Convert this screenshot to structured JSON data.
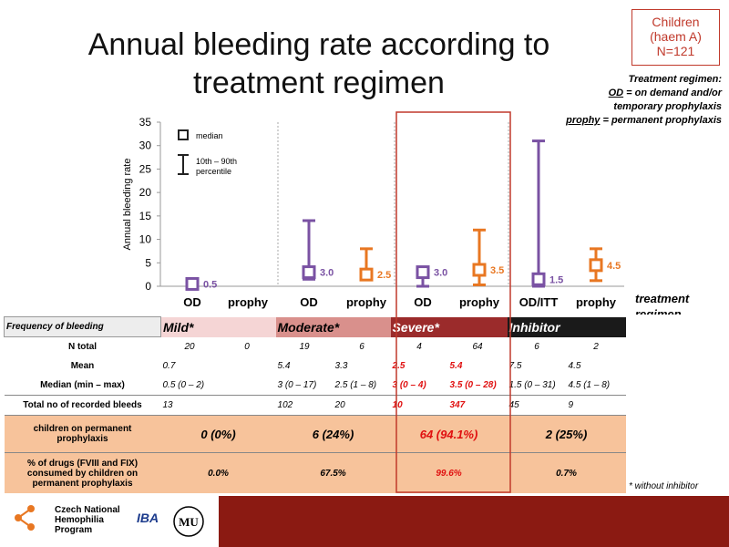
{
  "title": "Annual bleeding rate according to treatment regimen",
  "badge": {
    "line1": "Children",
    "line2": "(haem A)",
    "line3": "N=121"
  },
  "treatment_note": {
    "heading": "Treatment regimen:",
    "od_term": "OD",
    "od_def": " = on demand and/or",
    "od_def2": "temporary prophylaxis",
    "prophy_term": "prophy",
    "prophy_def": " = permanent prophylaxis"
  },
  "chart_data": {
    "type": "boxplot",
    "ylabel": "Annual bleeding rate",
    "ylim": [
      0,
      35
    ],
    "yticks": [
      0,
      5,
      10,
      15,
      20,
      25,
      30,
      35
    ],
    "xlabel": "treatment regimen",
    "legend": {
      "median": "median",
      "range_line1": "10th – 90th",
      "range_line2": "percentile"
    },
    "series": [
      {
        "group": "Mild*",
        "regimen": "OD",
        "median": 0.5,
        "low": 0,
        "high": 1.5,
        "label": "0.5",
        "color": "#7a52a3"
      },
      {
        "group": "Mild*",
        "regimen": "prophy",
        "median": null,
        "low": null,
        "high": null,
        "label": "",
        "color": "#e87722"
      },
      {
        "group": "Moderate*",
        "regimen": "OD",
        "median": 3.0,
        "low": 1.5,
        "high": 14,
        "label": "3.0",
        "color": "#7a52a3"
      },
      {
        "group": "Moderate*",
        "regimen": "prophy",
        "median": 2.5,
        "low": 1.5,
        "high": 8,
        "label": "2.5",
        "color": "#e87722"
      },
      {
        "group": "Severe*",
        "regimen": "OD",
        "median": 3.0,
        "low": 0,
        "high": 4,
        "label": "3.0",
        "color": "#7a52a3"
      },
      {
        "group": "Severe*",
        "regimen": "prophy",
        "median": 3.5,
        "low": 0.3,
        "high": 12,
        "label": "3.5",
        "color": "#e87722"
      },
      {
        "group": "Inhibitor",
        "regimen": "OD/ITT",
        "median": 1.5,
        "low": 0,
        "high": 31,
        "label": "1.5",
        "color": "#7a52a3"
      },
      {
        "group": "Inhibitor",
        "regimen": "prophy",
        "median": 4.5,
        "low": 1.2,
        "high": 8,
        "label": "4.5",
        "color": "#e87722"
      }
    ]
  },
  "table": {
    "freq_label": "Frequency of bleeding",
    "groups": [
      "Mild*",
      "Moderate*",
      "Severe*",
      "Inhibitor"
    ],
    "n_label": "N total",
    "n": [
      "20",
      "0",
      "19",
      "6",
      "4",
      "64",
      "6",
      "2"
    ],
    "mean_label": "Mean",
    "mean": [
      "0.7",
      "",
      "5.4",
      "3.3",
      "2.5",
      "5.4",
      "7.5",
      "4.5"
    ],
    "median_label": "Median (min – max)",
    "median": [
      "0.5 (0 – 2)",
      "",
      "3 (0 – 17)",
      "2.5 (1 – 8)",
      "3 (0 – 4)",
      "3.5 (0 – 28)",
      "1.5 (0 – 31)",
      "4.5 (1 – 8)"
    ],
    "bleeds_label": "Total no of recorded bleeds",
    "bleeds": [
      "13",
      "",
      "102",
      "20",
      "10",
      "347",
      "45",
      "9"
    ],
    "perm_label1": "children on permanent",
    "perm_label2": "prophylaxis",
    "perm": [
      "0 (0%)",
      "6 (24%)",
      "64 (94.1%)",
      "2 (25%)"
    ],
    "drugs_label1": "% of drugs (FVIII and FIX)",
    "drugs_label2": "consumed by children on",
    "drugs_label3": "permanent prophylaxis",
    "drugs": [
      "0.0%",
      "67.5%",
      "99.6%",
      "0.7%"
    ]
  },
  "footnote": "* without inhibitor",
  "footer": {
    "logo1": "Czech National",
    "logo2": "Hemophilia",
    "logo3": "Program",
    "iba": "IBA",
    "mu": "MU"
  }
}
